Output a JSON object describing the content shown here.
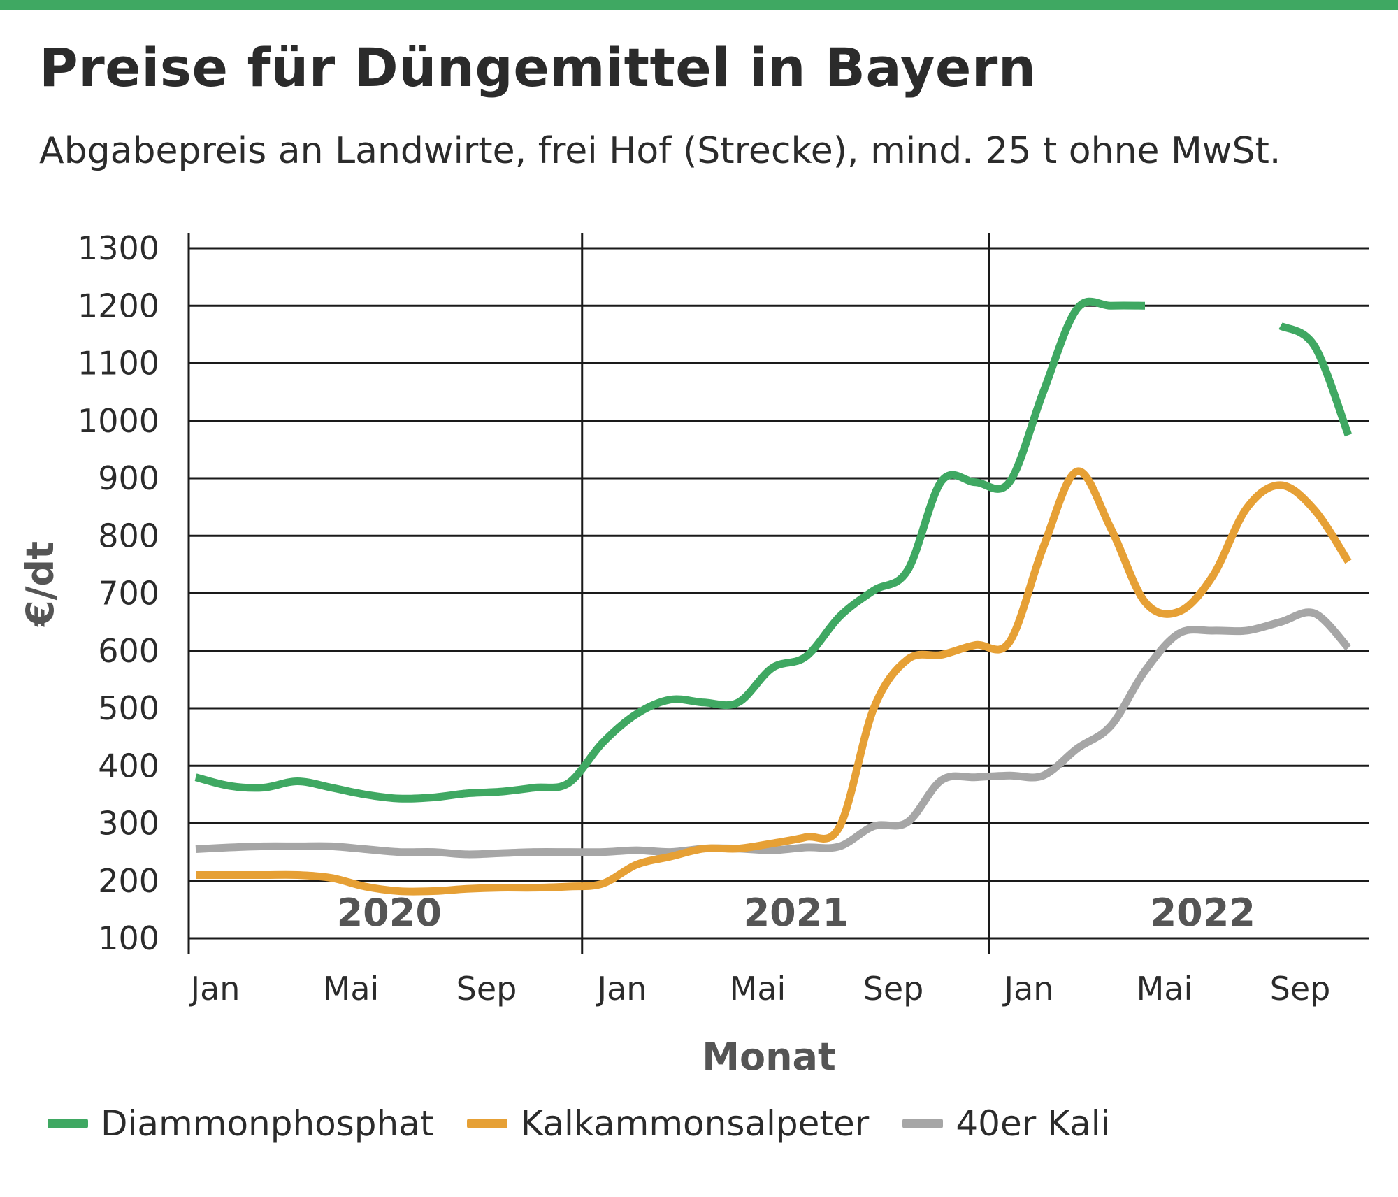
{
  "header": {
    "title": "Preise für Düngemittel in Bayern",
    "subtitle": "Abgabepreis an Landwirte, frei Hof (Strecke), mind. 25 t ohne MwSt."
  },
  "colors": {
    "accent_bar": "#3fa862",
    "grid": "#1a1a1a"
  },
  "chart_data": {
    "type": "line",
    "title": "Preise für Düngemittel in Bayern",
    "subtitle": "Abgabepreis an Landwirte, frei Hof (Strecke), mind. 25 t ohne MwSt.",
    "xlabel": "Monat",
    "ylabel": "€/dt",
    "ylim": [
      100,
      1300
    ],
    "yticks": [
      100,
      200,
      300,
      400,
      500,
      600,
      700,
      800,
      900,
      1000,
      1100,
      1200,
      1300
    ],
    "x": [
      "2020-01",
      "2020-02",
      "2020-03",
      "2020-04",
      "2020-05",
      "2020-06",
      "2020-07",
      "2020-08",
      "2020-09",
      "2020-10",
      "2020-11",
      "2020-12",
      "2021-01",
      "2021-02",
      "2021-03",
      "2021-04",
      "2021-05",
      "2021-06",
      "2021-07",
      "2021-08",
      "2021-09",
      "2021-10",
      "2021-11",
      "2021-12",
      "2022-01",
      "2022-02",
      "2022-03",
      "2022-04",
      "2022-05",
      "2022-06",
      "2022-07",
      "2022-08",
      "2022-09",
      "2022-10",
      "2022-11"
    ],
    "xtick_labels": [
      "Jan",
      "Mai",
      "Sep",
      "Jan",
      "Mai",
      "Sep",
      "Jan",
      "Mai",
      "Sep"
    ],
    "xtick_months": [
      "2020-01",
      "2020-05",
      "2020-09",
      "2021-01",
      "2021-05",
      "2021-09",
      "2022-01",
      "2022-05",
      "2022-09"
    ],
    "years": [
      {
        "label": "2020",
        "from": "2020-01",
        "to": "2020-12"
      },
      {
        "label": "2021",
        "from": "2021-01",
        "to": "2021-12"
      },
      {
        "label": "2022",
        "from": "2022-01",
        "to": "2022-12"
      }
    ],
    "grid": true,
    "legend_position": "bottom",
    "series": [
      {
        "name": "Diammonphosphat",
        "color": "#3fa862",
        "values": [
          380,
          365,
          362,
          373,
          362,
          350,
          343,
          345,
          352,
          355,
          362,
          370,
          440,
          490,
          515,
          510,
          510,
          570,
          590,
          660,
          705,
          740,
          895,
          893,
          893,
          1050,
          1195,
          1200,
          1200,
          null,
          null,
          null,
          1165,
          1130,
          975
        ]
      },
      {
        "name": "Kalkammonsalpeter",
        "color": "#e6a035",
        "values": [
          210,
          210,
          210,
          210,
          205,
          190,
          182,
          182,
          186,
          188,
          188,
          190,
          195,
          228,
          242,
          256,
          256,
          265,
          276,
          295,
          500,
          585,
          593,
          610,
          615,
          780,
          912,
          812,
          685,
          668,
          730,
          848,
          888,
          845,
          755
        ]
      },
      {
        "name": "40er Kali",
        "color": "#a6a6a6",
        "values": [
          255,
          258,
          260,
          260,
          260,
          255,
          250,
          250,
          246,
          248,
          250,
          250,
          250,
          253,
          250,
          256,
          256,
          253,
          258,
          260,
          295,
          302,
          375,
          380,
          383,
          383,
          430,
          470,
          565,
          630,
          635,
          635,
          650,
          665,
          605
        ]
      }
    ]
  }
}
